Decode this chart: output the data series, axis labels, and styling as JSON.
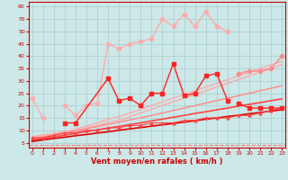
{
  "background_color": "#cce8e8",
  "grid_color": "#aacccc",
  "xlabel": "Vent moyen/en rafales ( km/h )",
  "x_ticks": [
    0,
    1,
    2,
    3,
    4,
    5,
    6,
    7,
    8,
    9,
    10,
    11,
    12,
    13,
    14,
    15,
    16,
    17,
    18,
    19,
    20,
    21,
    22,
    23
  ],
  "y_ticks": [
    5,
    10,
    15,
    20,
    25,
    30,
    35,
    40,
    45,
    50,
    55,
    60
  ],
  "ylim": [
    3,
    62
  ],
  "xlim": [
    -0.3,
    23.3
  ],
  "linear_series": [
    {
      "color": "#ffaaaa",
      "lw": 1.0,
      "values": [
        7.5,
        8.1,
        8.7,
        9.4,
        10.5,
        11.7,
        13.0,
        14.5,
        15.5,
        17.0,
        18.5,
        20.0,
        21.5,
        23.0,
        24.5,
        26.0,
        27.5,
        29.0,
        30.5,
        32.0,
        33.5,
        35.0,
        36.5,
        38.0
      ]
    },
    {
      "color": "#ffaaaa",
      "lw": 1.0,
      "values": [
        7.0,
        7.6,
        8.3,
        9.0,
        10.0,
        11.0,
        12.0,
        13.2,
        14.0,
        15.5,
        17.0,
        18.5,
        20.0,
        21.5,
        23.0,
        24.5,
        26.0,
        27.5,
        29.0,
        30.5,
        32.0,
        33.5,
        35.0,
        36.5
      ]
    },
    {
      "color": "#ff8888",
      "lw": 1.0,
      "values": [
        6.5,
        7.2,
        8.0,
        8.8,
        9.7,
        10.6,
        11.5,
        12.4,
        13.3,
        14.2,
        15.1,
        16.0,
        17.0,
        18.0,
        19.0,
        20.0,
        21.0,
        22.0,
        23.0,
        24.0,
        25.0,
        26.0,
        27.0,
        28.0
      ]
    },
    {
      "color": "#ff4444",
      "lw": 1.2,
      "values": [
        6.0,
        6.7,
        7.4,
        8.0,
        8.8,
        9.5,
        10.2,
        10.9,
        11.6,
        12.3,
        13.0,
        13.8,
        14.5,
        15.3,
        16.0,
        16.8,
        17.5,
        18.3,
        19.0,
        19.8,
        20.5,
        21.2,
        22.0,
        22.7
      ]
    },
    {
      "color": "#dd0000",
      "lw": 1.2,
      "values": [
        5.5,
        6.1,
        6.7,
        7.2,
        7.8,
        8.3,
        8.9,
        9.4,
        10.0,
        10.6,
        11.1,
        11.7,
        12.2,
        12.8,
        13.3,
        13.9,
        14.5,
        15.0,
        15.6,
        16.1,
        16.7,
        17.2,
        17.8,
        18.3
      ]
    }
  ],
  "pink_jagged": {
    "color": "#ffaaaa",
    "lw": 1.0,
    "marker": "D",
    "ms": 2.5,
    "values": [
      23,
      15,
      null,
      null,
      null,
      null,
      null,
      null,
      null,
      null,
      null,
      null,
      null,
      null,
      null,
      null,
      null,
      null,
      null,
      null,
      null,
      null,
      null,
      null
    ]
  },
  "pink_jagged2": {
    "color": "#ffaaaa",
    "lw": 1.0,
    "marker": "D",
    "ms": 2.5,
    "values": [
      null,
      null,
      null,
      20,
      16,
      20,
      21,
      45,
      43,
      45,
      46,
      47,
      55,
      52,
      57,
      52,
      58,
      52,
      50,
      null,
      null,
      null,
      null,
      null
    ]
  },
  "pink_jagged3": {
    "color": "#ff8888",
    "lw": 1.0,
    "marker": "D",
    "ms": 2.5,
    "values": [
      null,
      null,
      null,
      null,
      null,
      null,
      null,
      null,
      null,
      null,
      null,
      null,
      null,
      null,
      null,
      null,
      null,
      null,
      null,
      33,
      34,
      34,
      35,
      40
    ]
  },
  "red_jagged": {
    "color": "#ff2222",
    "lw": 1.0,
    "marker": "s",
    "ms": 2.5,
    "values": [
      null,
      null,
      null,
      13,
      13,
      null,
      null,
      31,
      22,
      23,
      20,
      25,
      25,
      37,
      24,
      25,
      32,
      33,
      22,
      null,
      null,
      null,
      null,
      null
    ]
  },
  "red_jagged2": {
    "color": "#ff2222",
    "lw": 1.0,
    "marker": "s",
    "ms": 2.5,
    "values": [
      null,
      null,
      null,
      null,
      null,
      null,
      null,
      null,
      null,
      null,
      null,
      null,
      null,
      null,
      null,
      null,
      null,
      null,
      null,
      21,
      19,
      19,
      19,
      19
    ]
  },
  "arrow_series": {
    "color": "#ff4444",
    "lw": 0.8,
    "values": [
      7,
      7,
      8,
      9,
      9,
      10,
      10,
      11,
      11,
      12,
      12,
      13,
      13,
      13,
      14,
      14,
      15,
      15,
      15,
      16,
      16,
      17,
      18,
      19
    ]
  },
  "dashed": {
    "color": "#ff7777",
    "lw": 0.8,
    "yval": 4
  }
}
